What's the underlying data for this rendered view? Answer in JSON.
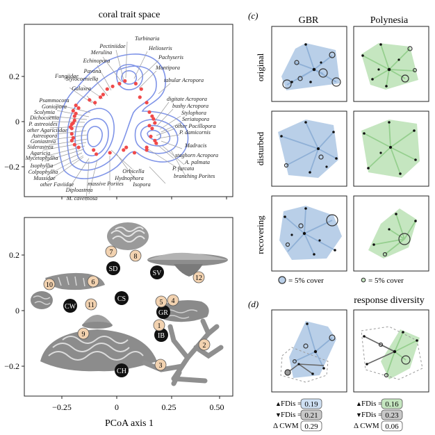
{
  "panel_a": {
    "title": "coral trait space",
    "y_ticks": [
      "0.2",
      "0",
      "−0.2"
    ],
    "taxa": [
      {
        "label": "Turbinaria",
        "x": 0.06,
        "y": 0.3
      },
      {
        "label": "Pectiniidae",
        "x": 0.02,
        "y": 0.28
      },
      {
        "label": "Merulina",
        "x": -0.03,
        "y": 0.26
      },
      {
        "label": "Echinopora",
        "x": -0.07,
        "y": 0.24
      },
      {
        "label": "Helioseris",
        "x": 0.14,
        "y": 0.28
      },
      {
        "label": "Pachyseris",
        "x": 0.18,
        "y": 0.24
      },
      {
        "label": "Pavona",
        "x": -0.1,
        "y": 0.2
      },
      {
        "label": "Stylocoeniella",
        "x": -0.12,
        "y": 0.18
      },
      {
        "label": "Montipora",
        "x": 0.17,
        "y": 0.18
      },
      {
        "label": "Fungiidae",
        "x": -0.2,
        "y": 0.16
      },
      {
        "label": "Galaxea",
        "x": -0.16,
        "y": 0.14
      },
      {
        "label": "tabular Acropora",
        "x": 0.22,
        "y": 0.14
      },
      {
        "label": "Psammocora",
        "x": -0.3,
        "y": 0.12
      },
      {
        "label": "Goniopora",
        "x": -0.28,
        "y": 0.1
      },
      {
        "label": "Scolymia",
        "x": -0.32,
        "y": 0.08
      },
      {
        "label": "Dichocoenia",
        "x": -0.3,
        "y": 0.06
      },
      {
        "label": "P. astreoides",
        "x": -0.31,
        "y": 0.04
      },
      {
        "label": "digitate Acropora",
        "x": 0.24,
        "y": 0.07
      },
      {
        "label": "bushy Acropora",
        "x": 0.26,
        "y": 0.04
      },
      {
        "label": "other Agariciidae",
        "x": -0.31,
        "y": 0.01
      },
      {
        "label": "Stylophora",
        "x": 0.27,
        "y": 0.02
      },
      {
        "label": "Astreopora",
        "x": -0.32,
        "y": -0.01
      },
      {
        "label": "Seriatopora",
        "x": 0.28,
        "y": -0.01
      },
      {
        "label": "Goniastrea",
        "x": -0.33,
        "y": -0.02
      },
      {
        "label": "Siderastrea",
        "x": -0.34,
        "y": -0.04
      },
      {
        "label": "other Pocillopora",
        "x": 0.24,
        "y": -0.03
      },
      {
        "label": "Agaricia",
        "x": -0.33,
        "y": -0.05
      },
      {
        "label": "P. damicornis",
        "x": 0.26,
        "y": -0.05
      },
      {
        "label": "Mycetophyllia",
        "x": -0.33,
        "y": -0.09
      },
      {
        "label": "Isophyllia",
        "x": -0.32,
        "y": -0.12
      },
      {
        "label": "Madracis",
        "x": 0.25,
        "y": -0.11
      },
      {
        "label": "Colpophyllia",
        "x": -0.33,
        "y": -0.14
      },
      {
        "label": "staghorn Acropora",
        "x": 0.28,
        "y": -0.14
      },
      {
        "label": "Mussidae",
        "x": -0.31,
        "y": -0.17
      },
      {
        "label": "A. palmata",
        "x": 0.29,
        "y": -0.16
      },
      {
        "label": "other Faviidae",
        "x": -0.28,
        "y": -0.19
      },
      {
        "label": "P. furcata",
        "x": 0.22,
        "y": -0.19
      },
      {
        "label": "Orbicella",
        "x": 0.07,
        "y": -0.19
      },
      {
        "label": "Diploastrea",
        "x": -0.17,
        "y": -0.21
      },
      {
        "label": "Hydnophora",
        "x": 0.05,
        "y": -0.21
      },
      {
        "label": "branching Porites",
        "x": 0.22,
        "y": -0.21
      },
      {
        "label": "massive Porites",
        "x": -0.05,
        "y": -0.23
      },
      {
        "label": "Isopora",
        "x": 0.13,
        "y": -0.23
      },
      {
        "label": "M. cavernosa",
        "x": -0.15,
        "y": -0.24
      }
    ]
  },
  "panel_b": {
    "y_ticks": [
      "0.2",
      "0",
      "−0.2"
    ],
    "x_ticks": [
      "−0.25",
      "0",
      "0.25",
      "0.50"
    ],
    "x_label": "PCoA axis 1",
    "categories": [
      "SD",
      "SV",
      "CW",
      "CS",
      "GR",
      "IB",
      "CH"
    ],
    "numbers": [
      "1",
      "2",
      "3",
      "4",
      "5",
      "6",
      "7",
      "8",
      "9",
      "10",
      "11",
      "12"
    ]
  },
  "panel_c": {
    "letter": "(c)",
    "columns": [
      "GBR",
      "Polynesia"
    ],
    "rows": [
      "original",
      "disturbed",
      "recovering"
    ],
    "legend": [
      {
        "text": "= 5% cover"
      },
      {
        "text": "= 5% cover"
      }
    ]
  },
  "panel_d": {
    "letter": "(d)",
    "title": "response diversity",
    "stats": {
      "labels": [
        "FDis =",
        "FDis =",
        "Δ CWM ="
      ],
      "gbr": [
        "0.19",
        "0.21",
        "0.29"
      ],
      "polynesia": [
        "0.16",
        "0.23",
        "0.06"
      ]
    }
  },
  "colors": {
    "gbr_fill": "#b9cfe8",
    "gbr_line": "#8fb0d6",
    "poly_fill": "#c5e6c0",
    "poly_line": "#95cf8e",
    "contour": "#7f94e8",
    "taxon_point": "#f04a4a",
    "up_box": "#cfe0f3",
    "down_box": "#c8c8c8"
  }
}
